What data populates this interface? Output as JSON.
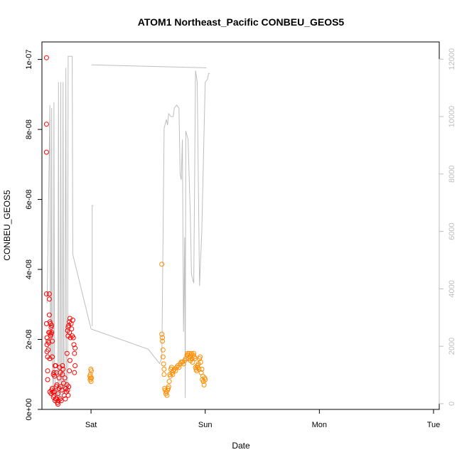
{
  "chart_data": {
    "type": "scatter",
    "title": "ATOM1 Northeast_Pacific CONBEU_GEOS5",
    "xlabel": "Date",
    "ylabel": "CONBEU_GEOS5",
    "x_ticks": [
      "Sat",
      "Sun",
      "Mon",
      "Tue"
    ],
    "x_range_days": [
      -0.43,
      3.05
    ],
    "ylim": [
      0,
      1.05e-07
    ],
    "y_ticks": [
      "0e+00",
      "2e-08",
      "4e-08",
      "6e-08",
      "8e-08",
      "1e-07"
    ],
    "y_tick_values": [
      0,
      2e-08,
      4e-08,
      6e-08,
      8e-08,
      1e-07
    ],
    "y2_ticks": [
      "0",
      "2000",
      "4000",
      "6000",
      "8000",
      "10000",
      "12000"
    ],
    "y2_tick_values": [
      0,
      2000,
      4000,
      6000,
      8000,
      10000,
      12000
    ],
    "y2lim": [
      -200,
      12600
    ],
    "grid": false,
    "colors": {
      "series1": "#ff0000",
      "series2": "#ff8c00",
      "altitude": "#bebebe"
    },
    "series": [
      {
        "marker": "circle",
        "color": "#ff0000",
        "points": [
          [
            -0.39,
            1.005e-07
          ],
          [
            -0.39,
            8.15e-08
          ],
          [
            -0.39,
            7.35e-08
          ],
          [
            -0.39,
            3.3e-08
          ],
          [
            -0.39,
            2.45e-08
          ],
          [
            -0.385,
            2.05e-08
          ],
          [
            -0.385,
            1.85e-08
          ],
          [
            -0.385,
            1.65e-08
          ],
          [
            -0.38,
            1.5e-08
          ],
          [
            -0.38,
            1.1e-08
          ],
          [
            -0.38,
            8.5e-09
          ],
          [
            -0.375,
            1.95e-08
          ],
          [
            -0.375,
            1.7e-08
          ],
          [
            -0.37,
            2.2e-08
          ],
          [
            -0.37,
            1.9e-08
          ],
          [
            -0.365,
            3.3e-08
          ],
          [
            -0.365,
            3.15e-08
          ],
          [
            -0.365,
            2.7e-08
          ],
          [
            -0.36,
            2.5e-08
          ],
          [
            -0.36,
            2.2e-08
          ],
          [
            -0.355,
            2.45e-08
          ],
          [
            -0.355,
            2.1e-08
          ],
          [
            -0.35,
            2.35e-08
          ],
          [
            -0.35,
            2.15e-08
          ],
          [
            -0.345,
            2.4e-08
          ],
          [
            -0.345,
            2.2e-08
          ],
          [
            -0.34,
            1.95e-08
          ],
          [
            -0.34,
            1.5e-08
          ],
          [
            -0.36,
            1.45e-08
          ],
          [
            -0.36,
            5e-09
          ],
          [
            -0.35,
            4.5e-09
          ],
          [
            -0.345,
            5.5e-09
          ],
          [
            -0.34,
            6e-09
          ],
          [
            -0.335,
            5e-09
          ],
          [
            -0.33,
            1e-08
          ],
          [
            -0.325,
            1.05e-08
          ],
          [
            -0.32,
            9.5e-09
          ],
          [
            -0.315,
            1.25e-08
          ],
          [
            -0.31,
            1.25e-08
          ],
          [
            -0.305,
            1.05e-08
          ],
          [
            -0.33,
            3.5e-09
          ],
          [
            -0.325,
            4e-09
          ],
          [
            -0.32,
            5e-09
          ],
          [
            -0.315,
            2.5e-09
          ],
          [
            -0.31,
            3e-09
          ],
          [
            -0.305,
            6.5e-09
          ],
          [
            -0.3,
            3e-09
          ],
          [
            -0.3,
            7e-09
          ],
          [
            -0.295,
            2e-09
          ],
          [
            -0.29,
            1.5e-09
          ],
          [
            -0.29,
            4.5e-09
          ],
          [
            -0.285,
            2.5e-09
          ],
          [
            -0.28,
            6e-09
          ],
          [
            -0.28,
            9e-09
          ],
          [
            -0.275,
            1.2e-08
          ],
          [
            -0.27,
            3e-09
          ],
          [
            -0.27,
            1.05e-08
          ],
          [
            -0.265,
            6.5e-09
          ],
          [
            -0.26,
            2.5e-09
          ],
          [
            -0.255,
            5.5e-09
          ],
          [
            -0.25,
            1e-08
          ],
          [
            -0.25,
            1.25e-08
          ],
          [
            -0.245,
            1.15e-08
          ],
          [
            -0.24,
            7.5e-09
          ],
          [
            -0.235,
            4e-09
          ],
          [
            -0.23,
            9e-09
          ],
          [
            -0.225,
            3e-09
          ],
          [
            -0.22,
            6e-09
          ],
          [
            -0.215,
            5e-09
          ],
          [
            -0.21,
            1.6e-08
          ],
          [
            -0.205,
            2.25e-08
          ],
          [
            -0.2,
            2.35e-08
          ],
          [
            -0.2,
            2.1e-08
          ],
          [
            -0.195,
            2.4e-08
          ],
          [
            -0.19,
            2.5e-08
          ],
          [
            -0.19,
            2.2e-08
          ],
          [
            -0.185,
            2.6e-08
          ],
          [
            -0.18,
            2.05e-08
          ],
          [
            -0.175,
            2.45e-08
          ],
          [
            -0.17,
            2.3e-08
          ],
          [
            -0.165,
            2.1e-08
          ],
          [
            -0.16,
            2.55e-08
          ],
          [
            -0.155,
            2.05e-08
          ],
          [
            -0.15,
            1.85e-08
          ],
          [
            -0.145,
            1.6e-08
          ],
          [
            -0.14,
            1.75e-08
          ],
          [
            -0.14,
            1.25e-08
          ],
          [
            -0.145,
            1.05e-08
          ],
          [
            -0.185,
            1.4e-08
          ],
          [
            -0.19,
            1.1e-08
          ],
          [
            -0.195,
            6.5e-09
          ],
          [
            -0.2,
            4e-09
          ],
          [
            -0.205,
            5.5e-09
          ],
          [
            -0.21,
            7e-09
          ]
        ]
      },
      {
        "marker": "circle",
        "color": "#ff8c00",
        "points": [
          [
            -0.01,
            9.5e-09
          ],
          [
            -0.008,
            8.5e-09
          ],
          [
            -0.006,
            1e-08
          ],
          [
            -0.004,
            9e-09
          ],
          [
            -0.002,
            1.15e-08
          ],
          [
            0.0,
            8e-09
          ],
          [
            0.002,
            1.1e-08
          ],
          [
            0.004,
            9e-09
          ],
          [
            0.62,
            4.15e-08
          ],
          [
            0.62,
            2.15e-08
          ],
          [
            0.625,
            2.05e-08
          ],
          [
            0.625,
            1.95e-08
          ],
          [
            0.63,
            1.7e-08
          ],
          [
            0.63,
            1.5e-08
          ],
          [
            0.635,
            1.3e-08
          ],
          [
            0.64,
            1.15e-08
          ],
          [
            0.64,
            1e-08
          ],
          [
            0.645,
            6e-09
          ],
          [
            0.65,
            5.5e-09
          ],
          [
            0.655,
            4.5e-09
          ],
          [
            0.66,
            5e-09
          ],
          [
            0.665,
            4e-09
          ],
          [
            0.67,
            5.5e-09
          ],
          [
            0.675,
            6e-09
          ],
          [
            0.68,
            6.5e-09
          ],
          [
            0.685,
            8e-09
          ],
          [
            0.69,
            1e-08
          ],
          [
            0.695,
            9.5e-09
          ],
          [
            0.7,
            1.15e-08
          ],
          [
            0.705,
            1.2e-08
          ],
          [
            0.71,
            1.05e-08
          ],
          [
            0.715,
            1e-08
          ],
          [
            0.72,
            1.1e-08
          ],
          [
            0.73,
            1.15e-08
          ],
          [
            0.74,
            1.1e-08
          ],
          [
            0.75,
            1.2e-08
          ],
          [
            0.76,
            1.25e-08
          ],
          [
            0.77,
            1.2e-08
          ],
          [
            0.78,
            1.3e-08
          ],
          [
            0.79,
            1.35e-08
          ],
          [
            0.8,
            1.35e-08
          ],
          [
            0.81,
            1.3e-08
          ],
          [
            0.82,
            1.4e-08
          ],
          [
            0.83,
            1.45e-08
          ],
          [
            0.84,
            1.55e-08
          ],
          [
            0.845,
            1.6e-08
          ],
          [
            0.85,
            1.55e-08
          ],
          [
            0.855,
            1.45e-08
          ],
          [
            0.86,
            1.6e-08
          ],
          [
            0.865,
            1.5e-08
          ],
          [
            0.87,
            1.4e-08
          ],
          [
            0.875,
            1.55e-08
          ],
          [
            0.88,
            1.6e-08
          ],
          [
            0.885,
            1.45e-08
          ],
          [
            0.89,
            1.35e-08
          ],
          [
            0.895,
            1.55e-08
          ],
          [
            0.9,
            1.6e-08
          ],
          [
            0.905,
            1.5e-08
          ],
          [
            0.91,
            1.45e-08
          ],
          [
            0.915,
            1.2e-08
          ],
          [
            0.92,
            1.15e-08
          ],
          [
            0.925,
            1.1e-08
          ],
          [
            0.93,
            1.25e-08
          ],
          [
            0.935,
            1.2e-08
          ],
          [
            0.94,
            1.3e-08
          ],
          [
            0.945,
            1.15e-08
          ],
          [
            0.95,
            1.45e-08
          ],
          [
            0.955,
            1.5e-08
          ],
          [
            0.96,
            1.35e-08
          ],
          [
            0.965,
            1.05e-08
          ],
          [
            0.97,
            1.15e-08
          ],
          [
            0.975,
            8.5e-09
          ],
          [
            0.98,
            9.5e-09
          ],
          [
            0.985,
            8e-09
          ],
          [
            0.99,
            7e-09
          ],
          [
            0.995,
            9e-09
          ],
          [
            1.0,
            8.5e-09
          ]
        ]
      }
    ],
    "altitude_line": {
      "color": "#bebebe",
      "points": [
        [
          -0.385,
          3500
        ],
        [
          -0.375,
          6000
        ],
        [
          -0.365,
          9000
        ],
        [
          -0.36,
          10400
        ],
        [
          -0.355,
          2000
        ],
        [
          -0.35,
          1500
        ],
        [
          -0.345,
          10300
        ],
        [
          -0.34,
          1500
        ],
        [
          -0.33,
          300
        ],
        [
          -0.325,
          10500
        ],
        [
          -0.32,
          1200
        ],
        [
          -0.31,
          200
        ],
        [
          -0.3,
          400
        ],
        [
          -0.29,
          200
        ],
        [
          -0.285,
          11200
        ],
        [
          -0.28,
          300
        ],
        [
          -0.27,
          200
        ],
        [
          -0.265,
          11200
        ],
        [
          -0.26,
          500
        ],
        [
          -0.25,
          400
        ],
        [
          -0.245,
          11200
        ],
        [
          -0.24,
          300
        ],
        [
          -0.23,
          400
        ],
        [
          -0.22,
          11700
        ],
        [
          -0.215,
          400
        ],
        [
          -0.205,
          400
        ],
        [
          -0.2,
          12100
        ],
        [
          -0.18,
          12100
        ],
        [
          -0.17,
          12100
        ],
        [
          -0.165,
          12100
        ],
        [
          -0.16,
          5200
        ],
        [
          0.0,
          2600
        ],
        [
          0.5,
          1900
        ],
        [
          0.6,
          1400
        ],
        [
          0.62,
          1600
        ],
        [
          0.64,
          9600
        ],
        [
          0.66,
          9900
        ],
        [
          0.67,
          9700
        ],
        [
          0.68,
          10100
        ],
        [
          0.7,
          10000
        ],
        [
          0.72,
          10000
        ],
        [
          0.73,
          10300
        ],
        [
          0.75,
          10400
        ],
        [
          0.77,
          10300
        ],
        [
          0.78,
          8000
        ],
        [
          0.79,
          7800
        ],
        [
          0.8,
          9200
        ],
        [
          0.81,
          2500
        ],
        [
          0.82,
          5800
        ],
        [
          0.825,
          200
        ],
        [
          0.83,
          9500
        ],
        [
          0.85,
          9200
        ],
        [
          0.87,
          6500
        ],
        [
          0.88,
          4500
        ],
        [
          0.9,
          4200
        ],
        [
          0.915,
          11600
        ],
        [
          0.93,
          11200
        ],
        [
          0.95,
          4100
        ],
        [
          0.97,
          6000
        ],
        [
          1.0,
          11200
        ],
        [
          1.02,
          11300
        ],
        [
          1.03,
          11500
        ],
        [
          1.04,
          11500
        ]
      ],
      "segments": [
        [
          [
            0.005,
            11800
          ],
          [
            1.01,
            11700
          ]
        ],
        [
          [
            0.01,
            2700
          ],
          [
            0.01,
            6900
          ],
          [
            0.02,
            6900
          ]
        ]
      ]
    }
  }
}
